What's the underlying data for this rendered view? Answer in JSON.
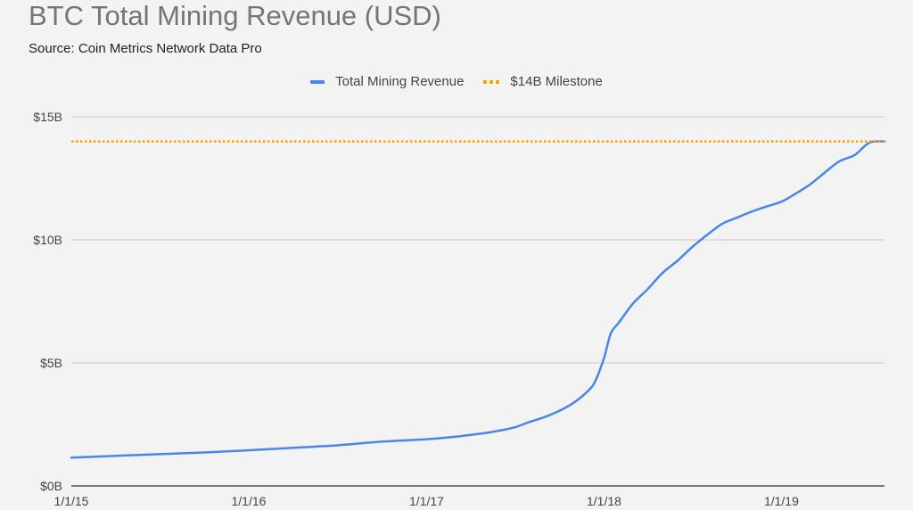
{
  "chart_data": {
    "type": "line",
    "title": "BTC Total Mining Revenue (USD)",
    "subtitle": "Source: Coin Metrics Network Data Pro",
    "xlabel": "",
    "ylabel": "",
    "y_unit": "billion USD",
    "ylim": [
      0,
      15
    ],
    "y_ticks": [
      0,
      5,
      10,
      15
    ],
    "y_tick_labels": [
      "$0B",
      "$5B",
      "$10B",
      "$15B"
    ],
    "x_ticks": [
      "2015-01-01",
      "2016-01-01",
      "2017-01-01",
      "2018-01-01",
      "2019-01-01"
    ],
    "x_tick_labels": [
      "1/1/15",
      "1/1/16",
      "1/1/17",
      "1/1/18",
      "1/1/19"
    ],
    "xlim": [
      "2015-01-01",
      "2019-08-01"
    ],
    "grid": true,
    "legend_position": "top-center",
    "series": [
      {
        "name": "Total Mining Revenue",
        "color": "#4a86e8",
        "style": "solid",
        "x": [
          "2015-01-01",
          "2015-04-01",
          "2015-07-01",
          "2015-10-01",
          "2016-01-01",
          "2016-04-01",
          "2016-07-01",
          "2016-10-01",
          "2017-01-01",
          "2017-03-01",
          "2017-05-01",
          "2017-06-01",
          "2017-07-01",
          "2017-08-01",
          "2017-09-01",
          "2017-10-01",
          "2017-11-01",
          "2017-12-01",
          "2017-12-15",
          "2018-01-01",
          "2018-01-15",
          "2018-02-01",
          "2018-03-01",
          "2018-04-01",
          "2018-05-01",
          "2018-06-01",
          "2018-07-01",
          "2018-08-01",
          "2018-09-01",
          "2018-10-01",
          "2018-11-01",
          "2018-12-01",
          "2019-01-01",
          "2019-02-01",
          "2019-03-01",
          "2019-04-01",
          "2019-05-01",
          "2019-06-01",
          "2019-07-01",
          "2019-08-01"
        ],
        "values": [
          1.15,
          1.22,
          1.29,
          1.36,
          1.45,
          1.55,
          1.65,
          1.8,
          1.9,
          2.0,
          2.15,
          2.25,
          2.38,
          2.6,
          2.8,
          3.05,
          3.4,
          3.9,
          4.3,
          5.2,
          6.2,
          6.65,
          7.4,
          8.0,
          8.65,
          9.15,
          9.7,
          10.2,
          10.65,
          10.9,
          11.15,
          11.35,
          11.55,
          11.9,
          12.25,
          12.75,
          13.2,
          13.45,
          13.95,
          14.0
        ]
      },
      {
        "name": "$14B Milestone",
        "color": "#f4a300",
        "style": "dotted",
        "x": [
          "2015-01-01",
          "2019-08-01"
        ],
        "values": [
          14,
          14
        ]
      }
    ]
  }
}
